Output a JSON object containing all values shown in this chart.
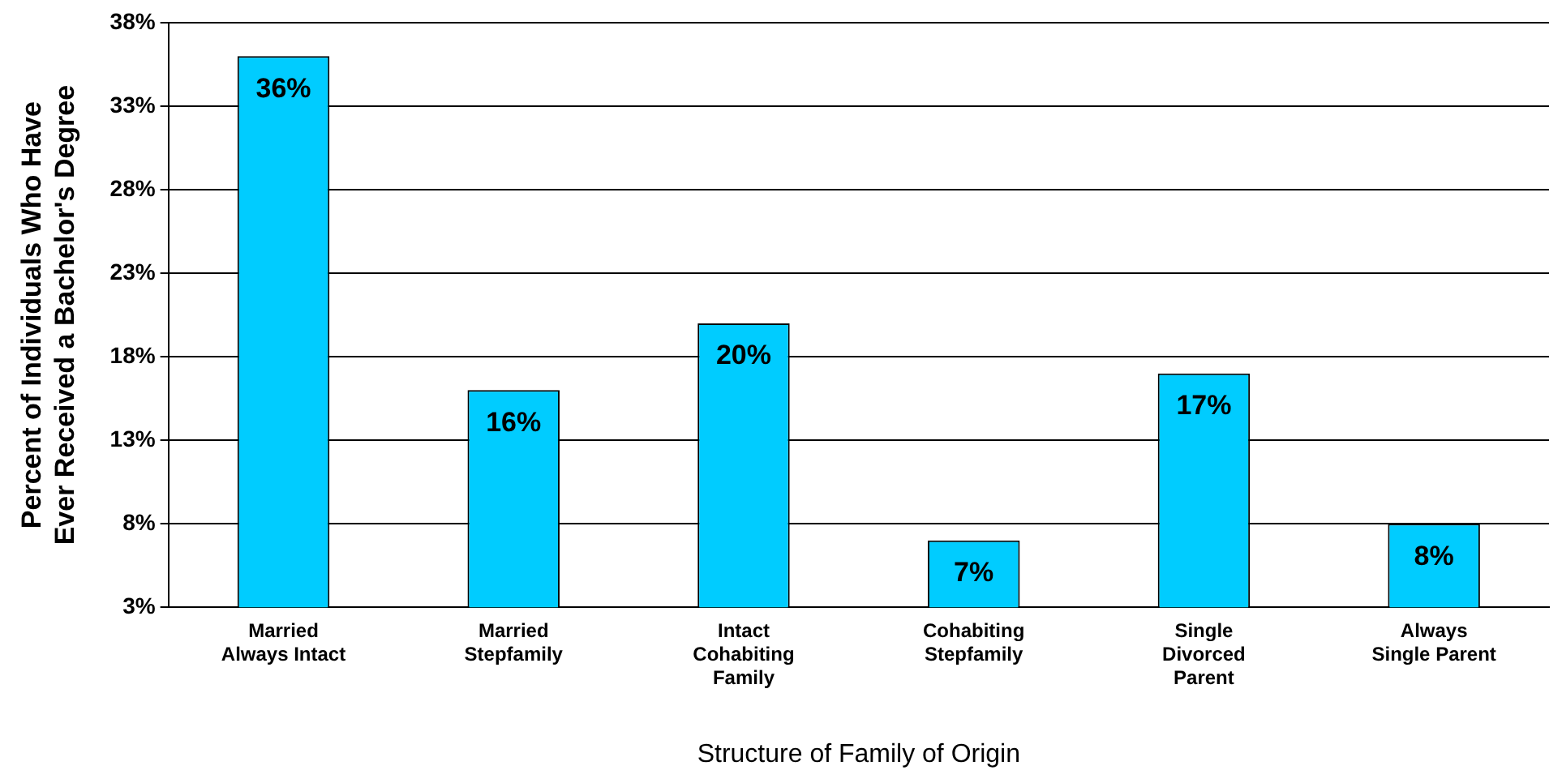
{
  "chart_data": {
    "type": "bar",
    "categories": [
      "Married\nAlways Intact",
      "Married\nStepfamily",
      "Intact\nCohabiting\nFamily",
      "Cohabiting\nStepfamily",
      "Single\nDivorced\nParent",
      "Always\nSingle Parent"
    ],
    "values": [
      36,
      16,
      20,
      7,
      17,
      8
    ],
    "color": "#00ccff",
    "xlabel": "Structure of Family of Origin",
    "ylabel": "Percent of Individuals Who Have\nEver Received a Bachelor's Degree",
    "ylim": [
      3,
      38
    ],
    "yticks": [
      {
        "value": 3,
        "label": "3%"
      },
      {
        "value": 8,
        "label": "8%"
      },
      {
        "value": 13,
        "label": "13%"
      },
      {
        "value": 18,
        "label": "18%"
      },
      {
        "value": 23,
        "label": "23%"
      },
      {
        "value": 28,
        "label": "28%"
      },
      {
        "value": 33,
        "label": "33%"
      },
      {
        "value": 38,
        "label": "38%"
      }
    ],
    "grid": "y",
    "value_labels": [
      "36%",
      "16%",
      "20%",
      "7%",
      "17%",
      "8%"
    ],
    "legend": false
  }
}
